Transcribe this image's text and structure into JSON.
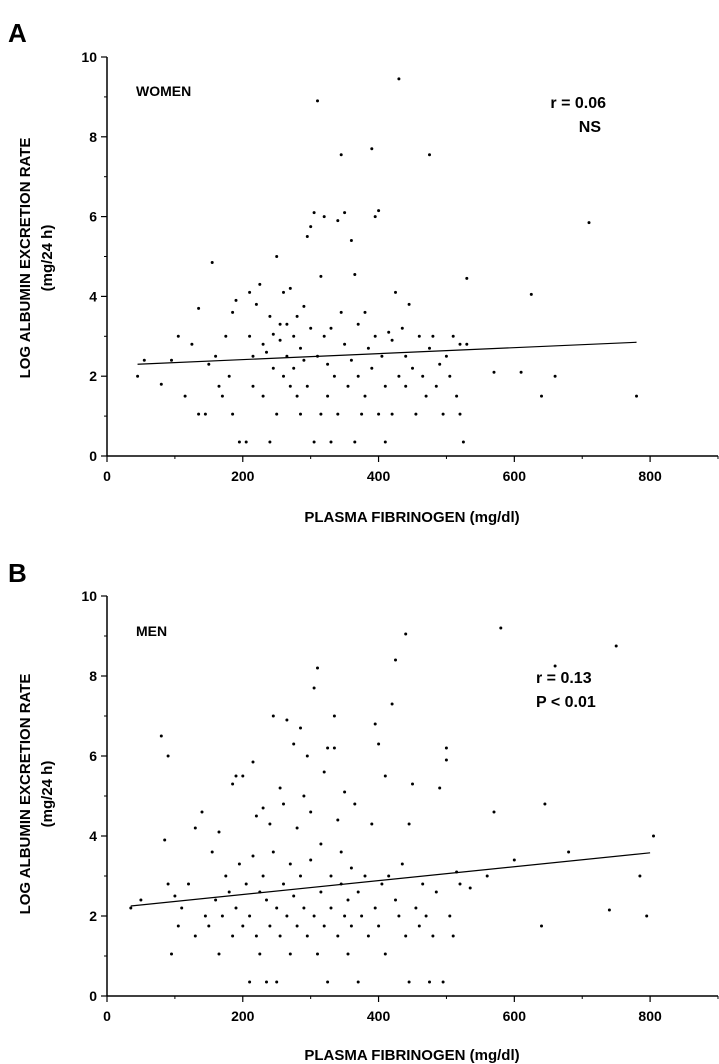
{
  "chart_data": [
    {
      "type": "scatter",
      "panel_letter": "A",
      "group_label": "WOMEN",
      "stat_line_1": "r = 0.06",
      "stat_line_2": "NS",
      "xlabel": "PLASMA FIBRINOGEN (mg/dl)",
      "ylabel_line_1": "LOG ALBUMIN EXCRETION RATE",
      "ylabel_line_2": "(mg/24 h)",
      "xlim": [
        0,
        900
      ],
      "ylim": [
        0,
        10
      ],
      "xticks": [
        0,
        200,
        400,
        600,
        800
      ],
      "yticks": [
        0,
        2,
        4,
        6,
        8,
        10
      ],
      "regression_line": {
        "x": [
          45,
          780
        ],
        "y": [
          2.3,
          2.85
        ]
      },
      "points": [
        [
          45,
          2.0
        ],
        [
          55,
          2.4
        ],
        [
          80,
          1.8
        ],
        [
          95,
          2.4
        ],
        [
          105,
          3.0
        ],
        [
          115,
          1.5
        ],
        [
          125,
          2.8
        ],
        [
          135,
          3.7
        ],
        [
          135,
          1.05
        ],
        [
          145,
          1.05
        ],
        [
          150,
          2.3
        ],
        [
          155,
          4.85
        ],
        [
          160,
          2.5
        ],
        [
          165,
          1.75
        ],
        [
          170,
          1.5
        ],
        [
          175,
          3.0
        ],
        [
          180,
          2.0
        ],
        [
          185,
          3.6
        ],
        [
          185,
          1.05
        ],
        [
          190,
          3.9
        ],
        [
          195,
          0.35
        ],
        [
          205,
          0.35
        ],
        [
          210,
          4.1
        ],
        [
          210,
          3.0
        ],
        [
          215,
          2.5
        ],
        [
          215,
          1.75
        ],
        [
          220,
          3.8
        ],
        [
          225,
          4.3
        ],
        [
          230,
          2.8
        ],
        [
          230,
          1.5
        ],
        [
          235,
          2.6
        ],
        [
          240,
          0.35
        ],
        [
          240,
          3.5
        ],
        [
          245,
          3.05
        ],
        [
          245,
          2.2
        ],
        [
          250,
          1.05
        ],
        [
          250,
          5.0
        ],
        [
          255,
          2.9
        ],
        [
          255,
          3.3
        ],
        [
          260,
          2.0
        ],
        [
          260,
          4.1
        ],
        [
          265,
          3.3
        ],
        [
          265,
          2.5
        ],
        [
          270,
          1.75
        ],
        [
          270,
          4.2
        ],
        [
          275,
          3.0
        ],
        [
          275,
          2.2
        ],
        [
          280,
          1.5
        ],
        [
          280,
          3.5
        ],
        [
          285,
          2.7
        ],
        [
          285,
          1.05
        ],
        [
          290,
          3.75
        ],
        [
          290,
          2.4
        ],
        [
          295,
          5.5
        ],
        [
          295,
          1.75
        ],
        [
          300,
          3.2
        ],
        [
          300,
          5.75
        ],
        [
          305,
          0.35
        ],
        [
          305,
          6.1
        ],
        [
          310,
          2.5
        ],
        [
          310,
          8.9
        ],
        [
          315,
          4.5
        ],
        [
          315,
          1.05
        ],
        [
          320,
          3.0
        ],
        [
          320,
          6.0
        ],
        [
          325,
          2.3
        ],
        [
          325,
          1.5
        ],
        [
          330,
          3.2
        ],
        [
          330,
          0.35
        ],
        [
          335,
          2.0
        ],
        [
          340,
          5.9
        ],
        [
          340,
          1.05
        ],
        [
          345,
          7.55
        ],
        [
          345,
          3.6
        ],
        [
          350,
          6.1
        ],
        [
          350,
          2.8
        ],
        [
          355,
          1.75
        ],
        [
          360,
          2.4
        ],
        [
          360,
          5.4
        ],
        [
          365,
          4.55
        ],
        [
          365,
          0.35
        ],
        [
          370,
          3.3
        ],
        [
          370,
          2.0
        ],
        [
          375,
          1.05
        ],
        [
          380,
          3.6
        ],
        [
          380,
          1.5
        ],
        [
          385,
          2.7
        ],
        [
          390,
          7.7
        ],
        [
          390,
          2.2
        ],
        [
          395,
          6.0
        ],
        [
          395,
          3.0
        ],
        [
          400,
          6.15
        ],
        [
          400,
          1.05
        ],
        [
          405,
          2.5
        ],
        [
          410,
          1.75
        ],
        [
          410,
          0.35
        ],
        [
          415,
          3.1
        ],
        [
          420,
          2.9
        ],
        [
          420,
          1.05
        ],
        [
          425,
          4.1
        ],
        [
          430,
          9.45
        ],
        [
          430,
          2.0
        ],
        [
          435,
          3.2
        ],
        [
          440,
          1.75
        ],
        [
          440,
          2.5
        ],
        [
          445,
          3.8
        ],
        [
          450,
          2.2
        ],
        [
          455,
          1.05
        ],
        [
          460,
          3.0
        ],
        [
          465,
          2.0
        ],
        [
          470,
          1.5
        ],
        [
          475,
          7.55
        ],
        [
          475,
          2.7
        ],
        [
          480,
          3.0
        ],
        [
          485,
          1.75
        ],
        [
          490,
          2.3
        ],
        [
          495,
          1.05
        ],
        [
          500,
          2.5
        ],
        [
          505,
          2.0
        ],
        [
          510,
          3.0
        ],
        [
          515,
          1.5
        ],
        [
          520,
          2.8
        ],
        [
          520,
          1.05
        ],
        [
          525,
          0.35
        ],
        [
          530,
          4.45
        ],
        [
          530,
          2.8
        ],
        [
          570,
          2.1
        ],
        [
          610,
          2.1
        ],
        [
          625,
          4.05
        ],
        [
          640,
          1.5
        ],
        [
          660,
          2.0
        ],
        [
          710,
          5.85
        ],
        [
          780,
          1.5
        ]
      ]
    },
    {
      "type": "scatter",
      "panel_letter": "B",
      "group_label": "MEN",
      "stat_line_1": "r = 0.13",
      "stat_line_2": "P < 0.01",
      "xlabel": "PLASMA FIBRINOGEN (mg/dl)",
      "ylabel_line_1": "LOG ALBUMIN EXCRETION RATE",
      "ylabel_line_2": "(mg/24 h)",
      "xlim": [
        0,
        900
      ],
      "ylim": [
        0,
        10
      ],
      "xticks": [
        0,
        200,
        400,
        600,
        800
      ],
      "yticks": [
        0,
        2,
        4,
        6,
        8,
        10
      ],
      "regression_line": {
        "x": [
          35,
          800
        ],
        "y": [
          2.25,
          3.58
        ]
      },
      "points": [
        [
          35,
          2.2
        ],
        [
          50,
          2.4
        ],
        [
          80,
          6.5
        ],
        [
          85,
          3.9
        ],
        [
          90,
          6.0
        ],
        [
          90,
          2.8
        ],
        [
          95,
          1.05
        ],
        [
          100,
          2.5
        ],
        [
          105,
          1.75
        ],
        [
          110,
          2.2
        ],
        [
          120,
          2.8
        ],
        [
          130,
          1.5
        ],
        [
          130,
          4.2
        ],
        [
          140,
          4.6
        ],
        [
          145,
          2.0
        ],
        [
          150,
          1.75
        ],
        [
          155,
          3.6
        ],
        [
          160,
          2.4
        ],
        [
          165,
          1.05
        ],
        [
          165,
          4.1
        ],
        [
          170,
          2.0
        ],
        [
          175,
          3.0
        ],
        [
          180,
          2.6
        ],
        [
          185,
          1.5
        ],
        [
          185,
          5.3
        ],
        [
          190,
          5.5
        ],
        [
          190,
          2.2
        ],
        [
          195,
          3.3
        ],
        [
          200,
          1.75
        ],
        [
          200,
          5.5
        ],
        [
          205,
          2.8
        ],
        [
          210,
          0.35
        ],
        [
          210,
          2.0
        ],
        [
          215,
          3.5
        ],
        [
          215,
          5.85
        ],
        [
          220,
          1.5
        ],
        [
          220,
          4.5
        ],
        [
          225,
          2.6
        ],
        [
          225,
          1.05
        ],
        [
          230,
          4.7
        ],
        [
          230,
          3.0
        ],
        [
          235,
          0.35
        ],
        [
          235,
          2.4
        ],
        [
          240,
          4.3
        ],
        [
          240,
          1.75
        ],
        [
          245,
          3.6
        ],
        [
          245,
          7.0
        ],
        [
          250,
          2.2
        ],
        [
          250,
          0.35
        ],
        [
          255,
          5.2
        ],
        [
          255,
          1.5
        ],
        [
          260,
          2.8
        ],
        [
          260,
          4.8
        ],
        [
          265,
          2.0
        ],
        [
          265,
          6.9
        ],
        [
          270,
          3.3
        ],
        [
          270,
          1.05
        ],
        [
          275,
          6.3
        ],
        [
          275,
          2.5
        ],
        [
          280,
          1.75
        ],
        [
          280,
          4.2
        ],
        [
          285,
          3.0
        ],
        [
          285,
          6.7
        ],
        [
          290,
          5.0
        ],
        [
          290,
          2.2
        ],
        [
          295,
          6.0
        ],
        [
          295,
          1.5
        ],
        [
          300,
          4.6
        ],
        [
          300,
          3.4
        ],
        [
          305,
          7.7
        ],
        [
          305,
          2.0
        ],
        [
          310,
          8.2
        ],
        [
          310,
          1.05
        ],
        [
          315,
          3.8
        ],
        [
          315,
          2.6
        ],
        [
          320,
          5.6
        ],
        [
          320,
          1.75
        ],
        [
          325,
          6.2
        ],
        [
          325,
          0.35
        ],
        [
          330,
          3.0
        ],
        [
          330,
          2.2
        ],
        [
          335,
          7.0
        ],
        [
          335,
          6.2
        ],
        [
          340,
          1.5
        ],
        [
          340,
          4.4
        ],
        [
          345,
          2.8
        ],
        [
          345,
          3.6
        ],
        [
          350,
          2.0
        ],
        [
          350,
          5.1
        ],
        [
          355,
          1.05
        ],
        [
          355,
          2.4
        ],
        [
          360,
          3.2
        ],
        [
          360,
          1.75
        ],
        [
          365,
          4.8
        ],
        [
          370,
          2.6
        ],
        [
          370,
          0.35
        ],
        [
          375,
          2.0
        ],
        [
          380,
          3.0
        ],
        [
          385,
          1.5
        ],
        [
          390,
          4.3
        ],
        [
          395,
          6.8
        ],
        [
          395,
          2.2
        ],
        [
          400,
          6.3
        ],
        [
          400,
          1.75
        ],
        [
          405,
          2.8
        ],
        [
          410,
          5.5
        ],
        [
          410,
          1.05
        ],
        [
          415,
          3.0
        ],
        [
          420,
          7.3
        ],
        [
          425,
          8.4
        ],
        [
          425,
          2.4
        ],
        [
          430,
          2.0
        ],
        [
          435,
          3.3
        ],
        [
          440,
          9.05
        ],
        [
          440,
          1.5
        ],
        [
          445,
          4.3
        ],
        [
          445,
          0.35
        ],
        [
          450,
          5.3
        ],
        [
          455,
          2.2
        ],
        [
          460,
          1.75
        ],
        [
          465,
          2.8
        ],
        [
          470,
          2.0
        ],
        [
          475,
          0.35
        ],
        [
          480,
          1.5
        ],
        [
          485,
          2.6
        ],
        [
          490,
          5.2
        ],
        [
          495,
          0.35
        ],
        [
          500,
          6.2
        ],
        [
          500,
          5.9
        ],
        [
          505,
          2.0
        ],
        [
          510,
          1.5
        ],
        [
          515,
          3.1
        ],
        [
          520,
          2.8
        ],
        [
          535,
          2.7
        ],
        [
          560,
          3.0
        ],
        [
          570,
          4.6
        ],
        [
          580,
          9.2
        ],
        [
          600,
          3.4
        ],
        [
          640,
          1.75
        ],
        [
          645,
          4.8
        ],
        [
          660,
          8.25
        ],
        [
          680,
          3.6
        ],
        [
          740,
          2.15
        ],
        [
          750,
          8.75
        ],
        [
          785,
          3.0
        ],
        [
          795,
          2.0
        ],
        [
          805,
          4.0
        ]
      ]
    }
  ]
}
